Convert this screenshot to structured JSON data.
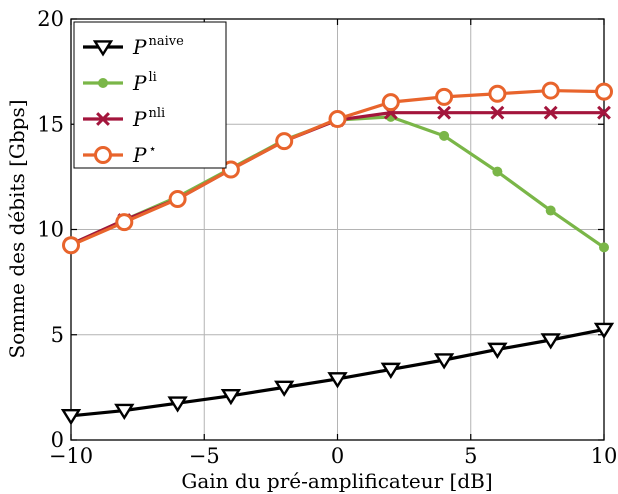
{
  "chart_data": {
    "type": "line",
    "xlabel": "Gain du pré-amplificateur [dB]",
    "ylabel": "Somme des débits [Gbps]",
    "xlim": [
      -10,
      10
    ],
    "ylim": [
      0,
      20
    ],
    "x_ticks": [
      -10,
      -5,
      0,
      5,
      10
    ],
    "y_ticks": [
      0,
      5,
      10,
      15,
      20
    ],
    "x_tick_labels": [
      "−10",
      "−5",
      "0",
      "5",
      "10"
    ],
    "y_tick_labels": [
      "0",
      "5",
      "10",
      "15",
      "20"
    ],
    "grid": true,
    "legend_position": "top-left",
    "x": [
      -10,
      -8,
      -6,
      -4,
      -2,
      0,
      2,
      4,
      6,
      8,
      10
    ],
    "series": [
      {
        "name_base": "P",
        "name_sup": "naive",
        "color": "#000000",
        "marker": "triangle-down",
        "values": [
          1.15,
          1.4,
          1.75,
          2.1,
          2.5,
          2.9,
          3.35,
          3.8,
          4.3,
          4.75,
          5.25
        ]
      },
      {
        "name_base": "P",
        "name_sup": "li",
        "color": "#7ab648",
        "marker": "dot",
        "values": [
          9.3,
          10.45,
          11.55,
          12.9,
          14.25,
          15.2,
          15.35,
          14.45,
          12.75,
          10.9,
          9.15
        ]
      },
      {
        "name_base": "P",
        "name_sup": "nli",
        "color": "#a3153c",
        "marker": "cross",
        "values": [
          9.3,
          10.45,
          11.45,
          12.85,
          14.2,
          15.2,
          15.55,
          15.55,
          15.55,
          15.55,
          15.55
        ]
      },
      {
        "name_base": "P",
        "name_sup": "⋆",
        "color": "#e8642c",
        "marker": "circle",
        "values": [
          9.25,
          10.35,
          11.45,
          12.85,
          14.2,
          15.25,
          16.05,
          16.3,
          16.45,
          16.6,
          16.55
        ]
      }
    ]
  }
}
